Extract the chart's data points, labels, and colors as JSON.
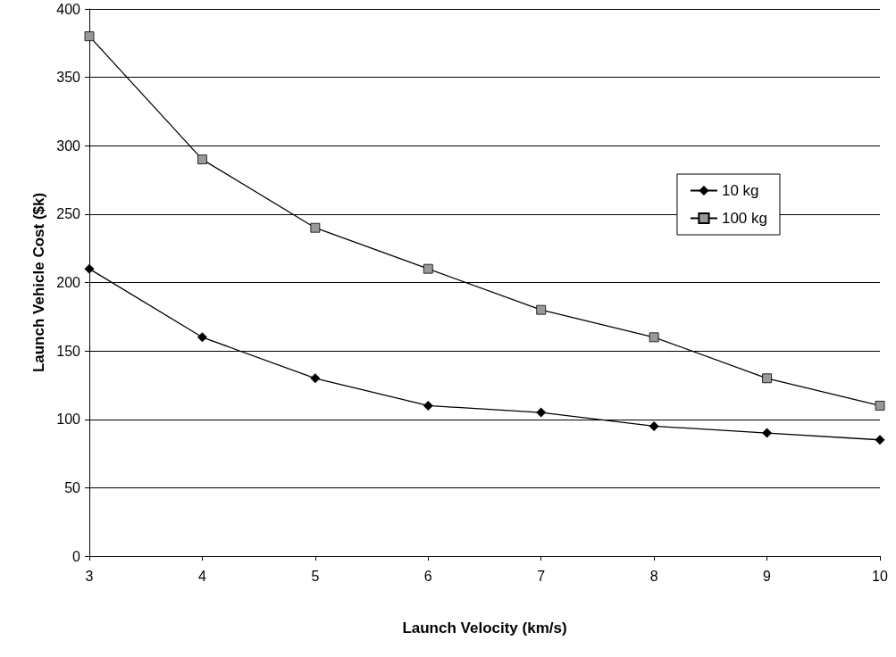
{
  "chart_data": {
    "type": "line",
    "xlabel": "Launch Velocity (km/s)",
    "ylabel": "Launch Vehicle Cost ($k)",
    "x": [
      3,
      4,
      5,
      6,
      7,
      8,
      9,
      10
    ],
    "series": [
      {
        "name": "10 kg",
        "color": "#000000",
        "marker": "diamond",
        "values": [
          210,
          160,
          130,
          110,
          105,
          95,
          90,
          85
        ]
      },
      {
        "name": "100 kg",
        "color": "#999999",
        "marker": "square",
        "values": [
          380,
          290,
          240,
          210,
          180,
          160,
          130,
          110
        ]
      }
    ],
    "xlim": [
      3,
      10
    ],
    "xticks": [
      3,
      4,
      5,
      6,
      7,
      8,
      9,
      10
    ],
    "ylim": [
      0,
      400
    ],
    "yticks": [
      0,
      50,
      100,
      150,
      200,
      250,
      300,
      350,
      400
    ],
    "grid": "y",
    "legend": "right",
    "line_style": "solid"
  }
}
